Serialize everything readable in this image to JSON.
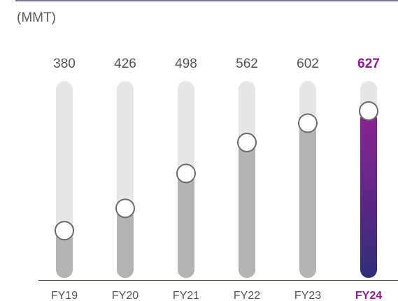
{
  "chart_data": {
    "type": "bar",
    "unit_label": "(MMT)",
    "categories": [
      "FY19",
      "FY20",
      "FY21",
      "FY22",
      "FY23",
      "FY24"
    ],
    "values": [
      380,
      426,
      498,
      562,
      602,
      627
    ],
    "highlight_index": 5,
    "ylim": [
      350,
      640
    ],
    "grid": false,
    "title": "",
    "xlabel": "",
    "ylabel": ""
  },
  "colors": {
    "track": "#e6e7e9",
    "fill": "#b1b3b5",
    "highlight_top": "#8e2393",
    "highlight_bottom": "#2f2d78",
    "text": "#555555",
    "highlight_text": "#8a1f8f",
    "rule": "#4a4a6a",
    "knob_fill": "#ffffff",
    "knob_stroke": "#6b6b6b"
  }
}
